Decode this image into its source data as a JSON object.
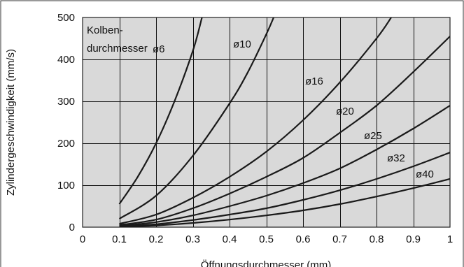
{
  "chart_data": {
    "type": "line",
    "xlabel": "Öffnungsdurchmesser (mm)",
    "ylabel": "Zylindergeschwindigkeit (mm/s)",
    "xlim": [
      0,
      1
    ],
    "ylim": [
      0,
      500
    ],
    "x_ticks": [
      "0",
      "0.1",
      "0.2",
      "0.3",
      "0.4",
      "0.5",
      "0.6",
      "0.7",
      "0.8",
      "0.9",
      "1"
    ],
    "y_ticks": [
      "0",
      "100",
      "200",
      "300",
      "400",
      "500"
    ],
    "grid": true,
    "background": "#d9d9d9",
    "legend_title": "Kolben-\ndurchmesser",
    "series": [
      {
        "name": "ø6",
        "x": [
          0.1,
          0.15,
          0.2,
          0.25,
          0.3,
          0.325
        ],
        "y": [
          55,
          120,
          200,
          300,
          420,
          500
        ]
      },
      {
        "name": "ø10",
        "x": [
          0.1,
          0.2,
          0.3,
          0.4,
          0.45,
          0.5,
          0.52
        ],
        "y": [
          20,
          75,
          170,
          295,
          370,
          460,
          500
        ]
      },
      {
        "name": "ø16",
        "x": [
          0.1,
          0.2,
          0.3,
          0.4,
          0.5,
          0.6,
          0.7,
          0.8,
          0.84
        ],
        "y": [
          8,
          30,
          70,
          120,
          180,
          255,
          345,
          450,
          500
        ]
      },
      {
        "name": "ø20",
        "x": [
          0.1,
          0.2,
          0.3,
          0.4,
          0.5,
          0.6,
          0.7,
          0.8,
          0.9,
          1.0
        ],
        "y": [
          5,
          18,
          45,
          80,
          120,
          165,
          225,
          290,
          370,
          455
        ]
      },
      {
        "name": "ø25",
        "x": [
          0.1,
          0.2,
          0.3,
          0.4,
          0.5,
          0.6,
          0.7,
          0.8,
          0.9,
          1.0
        ],
        "y": [
          3,
          12,
          28,
          50,
          75,
          105,
          140,
          185,
          235,
          290
        ]
      },
      {
        "name": "ø32",
        "x": [
          0.1,
          0.2,
          0.3,
          0.4,
          0.5,
          0.6,
          0.7,
          0.8,
          0.9,
          1.0
        ],
        "y": [
          2,
          7,
          17,
          30,
          45,
          65,
          88,
          115,
          145,
          178
        ]
      },
      {
        "name": "ø40",
        "x": [
          0.1,
          0.2,
          0.3,
          0.4,
          0.5,
          0.6,
          0.7,
          0.8,
          0.9,
          1.0
        ],
        "y": [
          1,
          4,
          10,
          18,
          28,
          40,
          55,
          73,
          93,
          115
        ]
      }
    ]
  }
}
